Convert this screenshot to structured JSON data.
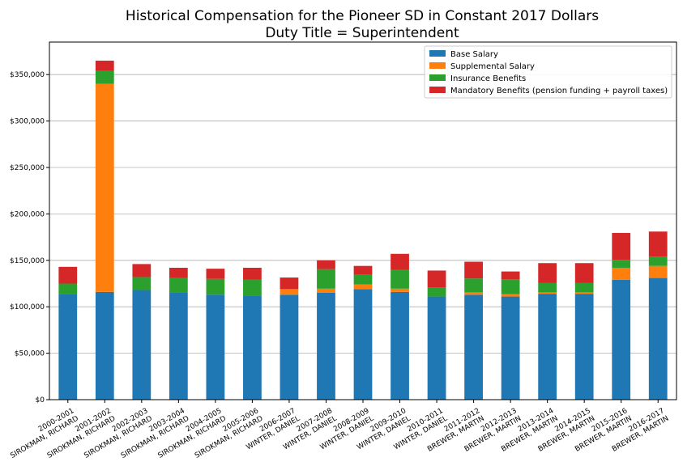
{
  "chart_data": {
    "type": "bar",
    "stacked": true,
    "title": [
      "Historical Compensation for the Pioneer SD in Constant 2017 Dollars",
      "Duty Title = Superintendent"
    ],
    "xlabel": "",
    "ylabel": "",
    "ylim": [
      0,
      385000
    ],
    "yticks": [
      0,
      50000,
      100000,
      150000,
      200000,
      250000,
      300000,
      350000
    ],
    "ytick_labels": [
      "$0",
      "$50,000",
      "$100,000",
      "$150,000",
      "$200,000",
      "$250,000",
      "$300,000",
      "$350,000"
    ],
    "grid": "horizontal",
    "legend_position": "top-right",
    "categories": [
      [
        "2000-2001",
        "SIROKMAN, RICHARD"
      ],
      [
        "2001-2002",
        "SIROKMAN, RICHARD"
      ],
      [
        "2002-2003",
        "SIROKMAN, RICHARD"
      ],
      [
        "2003-2004",
        "SIROKMAN, RICHARD"
      ],
      [
        "2004-2005",
        "SIROKMAN, RICHARD"
      ],
      [
        "2005-2006",
        "SIROKMAN, RICHARD"
      ],
      [
        "2006-2007",
        "WINTER, DANIEL"
      ],
      [
        "2007-2008",
        "WINTER, DANIEL"
      ],
      [
        "2008-2009",
        "WINTER, DANIEL"
      ],
      [
        "2009-2010",
        "WINTER, DANIEL"
      ],
      [
        "2010-2011",
        "WINTER, DANIEL"
      ],
      [
        "2011-2012",
        "BREWER, MARTIN"
      ],
      [
        "2012-2013",
        "BREWER, MARTIN"
      ],
      [
        "2013-2014",
        "BREWER, MARTIN"
      ],
      [
        "2014-2015",
        "BREWER, MARTIN"
      ],
      [
        "2015-2016",
        "BREWER, MARTIN"
      ],
      [
        "2016-2017",
        "BREWER, MARTIN"
      ]
    ],
    "series": [
      {
        "name": "Base Salary",
        "color": "#1f77b4",
        "values": [
          114000,
          116000,
          118000,
          115000,
          113000,
          112000,
          113000,
          115000,
          119000,
          116000,
          111000,
          113000,
          111000,
          114000,
          114000,
          129000,
          131000
        ]
      },
      {
        "name": "Supplemental Salary",
        "color": "#ff7f0e",
        "values": [
          0,
          224000,
          0,
          0,
          0,
          0,
          6000,
          4500,
          5000,
          3500,
          0,
          2500,
          2500,
          1500,
          1500,
          13000,
          13000
        ]
      },
      {
        "name": "Insurance Benefits",
        "color": "#2ca02c",
        "values": [
          11000,
          14000,
          14000,
          16000,
          17000,
          17000,
          0,
          21000,
          11000,
          20000,
          10000,
          15000,
          16000,
          10000,
          10000,
          8500,
          10000
        ]
      },
      {
        "name": "Mandatory Benefits (pension funding + payroll taxes)",
        "color": "#d62728",
        "values": [
          18000,
          11000,
          14000,
          11000,
          11000,
          13000,
          12500,
          9500,
          9000,
          17500,
          18000,
          18000,
          8500,
          21500,
          21500,
          29000,
          27000
        ]
      }
    ]
  }
}
